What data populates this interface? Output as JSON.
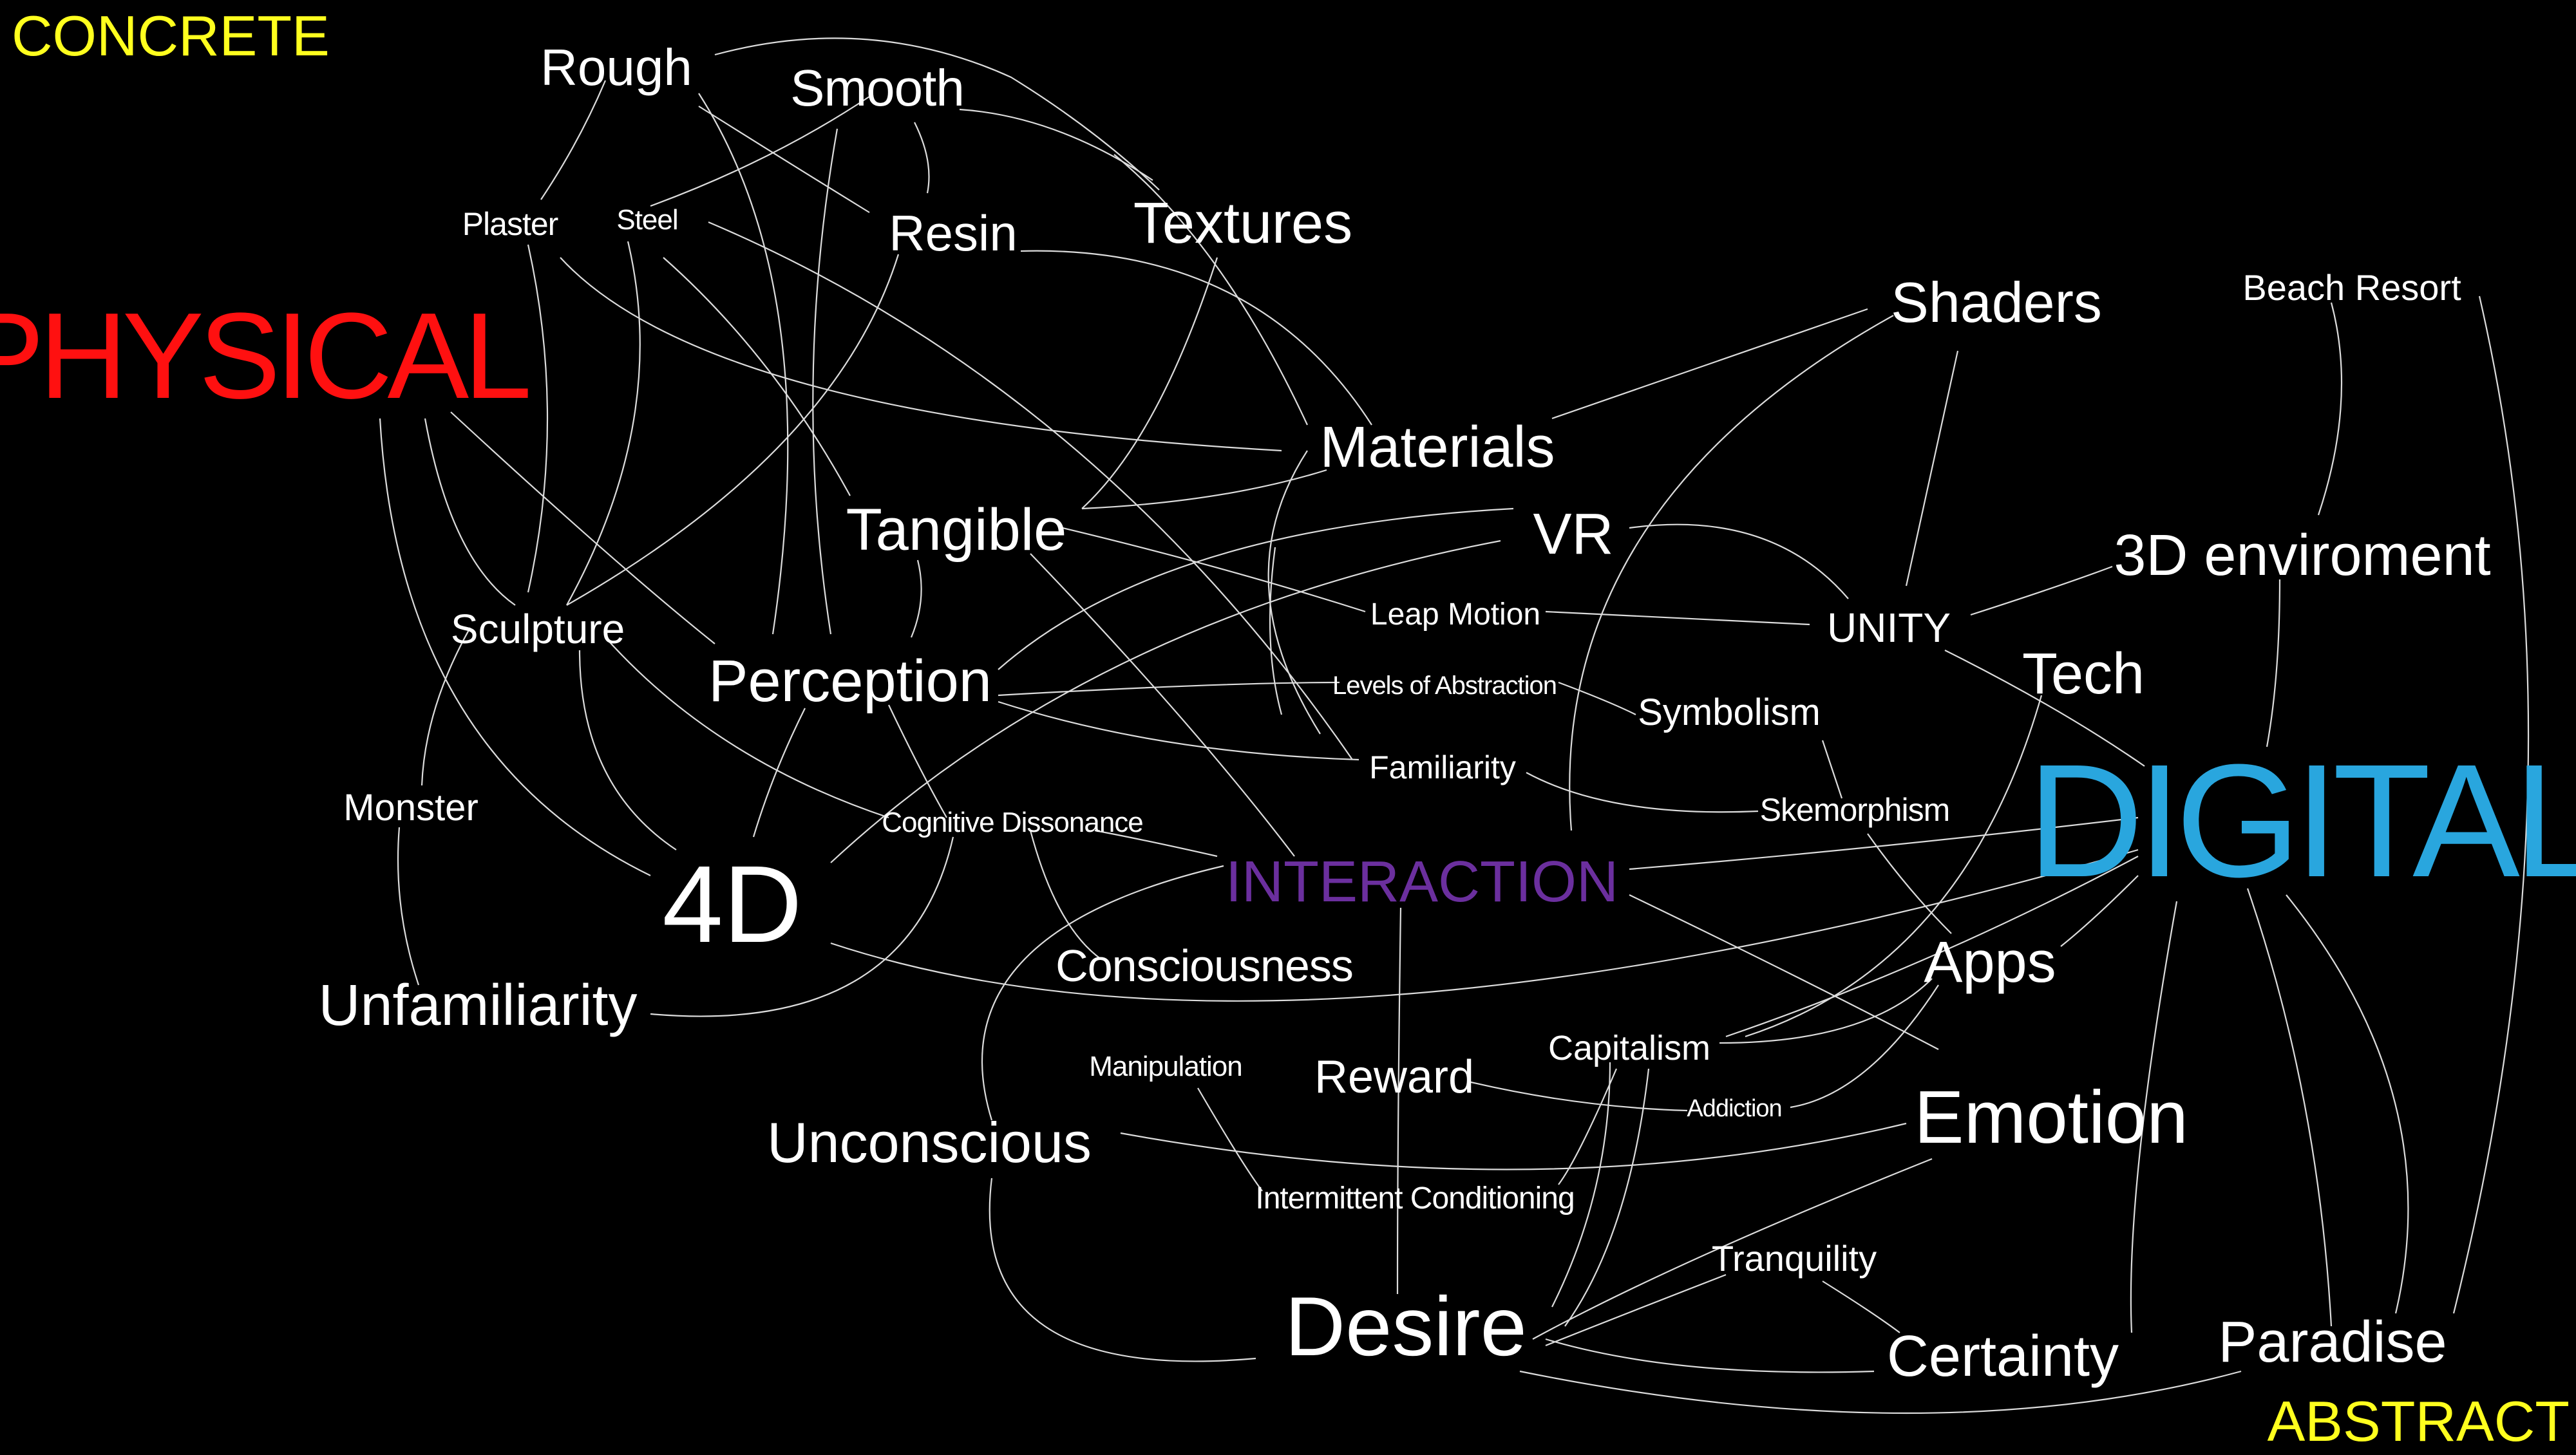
{
  "corners": {
    "concrete": "CONCRETE",
    "abstract": "ABSTRACT"
  },
  "colors": {
    "background": "#000000",
    "corner_labels": "#FFFF1E",
    "physical": "#FF1010",
    "digital": "#29A6DE",
    "interaction": "#6B2F9E",
    "node_text": "#FFFFFF",
    "links": "#DCDCDC"
  },
  "nodes": {
    "rough": "Rough",
    "smooth": "Smooth",
    "plaster": "Plaster",
    "steel": "Steel",
    "resin": "Resin",
    "textures": "Textures",
    "physical": "PHYSICAL",
    "materials": "Materials",
    "tangible": "Tangible",
    "vr": "VR",
    "shaders": "Shaders",
    "beach_resort": "Beach Resort",
    "sculpture": "Sculpture",
    "perception": "Perception",
    "leap_motion": "Leap Motion",
    "unity": "UNITY",
    "three_d_environment": "3D enviroment",
    "tech": "Tech",
    "levels_of_abstraction": "Levels of Abstraction",
    "symbolism": "Symbolism",
    "monster": "Monster",
    "familiarity": "Familiarity",
    "skemorphism": "Skemorphism",
    "digital": "DIGITAL",
    "cognitive_dissonance": "Cognitive Dissonance",
    "four_d": "4D",
    "interaction": "INTERACTION",
    "consciousness": "Consciousness",
    "apps": "Apps",
    "unfamiliarity": "Unfamiliarity",
    "capitalism": "Capitalism",
    "manipulation": "Manipulation",
    "reward": "Reward",
    "addiction": "Addiction",
    "emotion": "Emotion",
    "unconscious": "Unconscious",
    "intermittent_conditioning": "Intermittent Conditioning",
    "tranquility": "Tranquility",
    "desire": "Desire",
    "certainty": "Certainty",
    "paradise": "Paradise"
  }
}
